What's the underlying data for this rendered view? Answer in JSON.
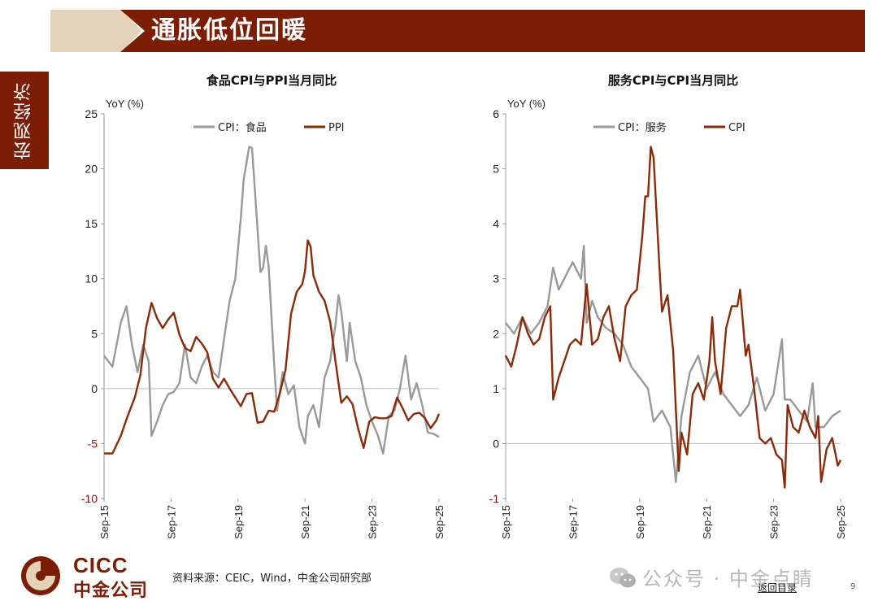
{
  "header": {
    "title": "通胀低位回暖"
  },
  "side_tab": {
    "label": "宏观经济"
  },
  "footer": {
    "logo_en": "CICC",
    "logo_cn": "中金公司",
    "source": "资料来源：CEIC，Wind，中金公司研究部",
    "watermark": "公众号 · 中金点睛",
    "back_link": "返回目录",
    "page_number": "9"
  },
  "colors": {
    "brand": "#7b1e05",
    "gold": "#e3d2b8",
    "gray_series": "#999999",
    "red_series": "#8b2a06"
  },
  "chart_data": [
    {
      "type": "line",
      "title": "食品CPI与PPI当月同比",
      "ylabel": "YoY (%)",
      "ylim": [
        -10,
        25
      ],
      "yticks": [
        -10,
        -5,
        0,
        5,
        10,
        15,
        20,
        25
      ],
      "xlim": [
        "2015-09",
        "2025-09"
      ],
      "xticks": [
        "Sep-15",
        "Sep-17",
        "Sep-19",
        "Sep-21",
        "Sep-23",
        "Sep-25"
      ],
      "legend_position": "top",
      "series": [
        {
          "name": "CPI：食品",
          "color": "#999999",
          "points": [
            [
              "2015-09",
              3.0
            ],
            [
              "2015-12",
              2.0
            ],
            [
              "2016-03",
              6.0
            ],
            [
              "2016-05",
              7.5
            ],
            [
              "2016-07",
              4.0
            ],
            [
              "2016-09",
              1.5
            ],
            [
              "2016-11",
              4.0
            ],
            [
              "2017-01",
              2.5
            ],
            [
              "2017-02",
              -4.3
            ],
            [
              "2017-04",
              -3.0
            ],
            [
              "2017-06",
              -1.5
            ],
            [
              "2017-08",
              -0.5
            ],
            [
              "2017-10",
              -0.3
            ],
            [
              "2017-12",
              0.5
            ],
            [
              "2018-02",
              4.0
            ],
            [
              "2018-04",
              1.0
            ],
            [
              "2018-06",
              0.5
            ],
            [
              "2018-08",
              2.0
            ],
            [
              "2018-10",
              3.0
            ],
            [
              "2018-12",
              1.5
            ],
            [
              "2019-02",
              1.0
            ],
            [
              "2019-04",
              4.5
            ],
            [
              "2019-06",
              8.0
            ],
            [
              "2019-08",
              10.0
            ],
            [
              "2019-10",
              15.5
            ],
            [
              "2019-11",
              19.0
            ],
            [
              "2020-01",
              22.0
            ],
            [
              "2020-02",
              21.9
            ],
            [
              "2020-04",
              14.5
            ],
            [
              "2020-05",
              10.6
            ],
            [
              "2020-06",
              11.0
            ],
            [
              "2020-07",
              13.0
            ],
            [
              "2020-08",
              11.0
            ],
            [
              "2020-10",
              2.0
            ],
            [
              "2020-11",
              -2.0
            ],
            [
              "2021-01",
              1.5
            ],
            [
              "2021-03",
              -0.5
            ],
            [
              "2021-05",
              0.3
            ],
            [
              "2021-07",
              -3.5
            ],
            [
              "2021-09",
              -5.0
            ],
            [
              "2021-10",
              -2.5
            ],
            [
              "2021-12",
              -1.5
            ],
            [
              "2022-02",
              -3.5
            ],
            [
              "2022-04",
              1.0
            ],
            [
              "2022-06",
              2.5
            ],
            [
              "2022-08",
              6.0
            ],
            [
              "2022-09",
              8.5
            ],
            [
              "2022-10",
              7.0
            ],
            [
              "2022-12",
              2.5
            ],
            [
              "2023-01",
              6.0
            ],
            [
              "2023-03",
              2.5
            ],
            [
              "2023-05",
              1.0
            ],
            [
              "2023-07",
              -1.5
            ],
            [
              "2023-09",
              -3.0
            ],
            [
              "2023-11",
              -4.2
            ],
            [
              "2024-01",
              -5.9
            ],
            [
              "2024-03",
              -2.5
            ],
            [
              "2024-05",
              -2.0
            ],
            [
              "2024-07",
              0.0
            ],
            [
              "2024-09",
              3.0
            ],
            [
              "2024-11",
              -1.0
            ],
            [
              "2025-01",
              0.5
            ],
            [
              "2025-03",
              -1.5
            ],
            [
              "2025-05",
              -4.0
            ],
            [
              "2025-07",
              -4.1
            ],
            [
              "2025-09",
              -4.4
            ]
          ]
        },
        {
          "name": "PPI",
          "color": "#8b2a06",
          "points": [
            [
              "2015-09",
              -5.9
            ],
            [
              "2015-12",
              -5.9
            ],
            [
              "2016-03",
              -4.3
            ],
            [
              "2016-05",
              -2.8
            ],
            [
              "2016-08",
              -0.8
            ],
            [
              "2016-10",
              1.2
            ],
            [
              "2016-12",
              5.5
            ],
            [
              "2017-02",
              7.8
            ],
            [
              "2017-04",
              6.4
            ],
            [
              "2017-06",
              5.5
            ],
            [
              "2017-08",
              6.3
            ],
            [
              "2017-10",
              6.9
            ],
            [
              "2017-12",
              4.9
            ],
            [
              "2018-02",
              3.7
            ],
            [
              "2018-04",
              3.4
            ],
            [
              "2018-06",
              4.7
            ],
            [
              "2018-08",
              4.1
            ],
            [
              "2018-10",
              3.3
            ],
            [
              "2018-12",
              0.9
            ],
            [
              "2019-02",
              0.1
            ],
            [
              "2019-04",
              0.9
            ],
            [
              "2019-06",
              0.0
            ],
            [
              "2019-08",
              -0.8
            ],
            [
              "2019-10",
              -1.6
            ],
            [
              "2019-12",
              -0.5
            ],
            [
              "2020-02",
              -0.4
            ],
            [
              "2020-04",
              -3.1
            ],
            [
              "2020-06",
              -3.0
            ],
            [
              "2020-08",
              -2.0
            ],
            [
              "2020-10",
              -2.1
            ],
            [
              "2020-12",
              -0.4
            ],
            [
              "2021-02",
              1.7
            ],
            [
              "2021-04",
              6.8
            ],
            [
              "2021-06",
              8.8
            ],
            [
              "2021-08",
              9.5
            ],
            [
              "2021-09",
              10.7
            ],
            [
              "2021-10",
              13.5
            ],
            [
              "2021-11",
              12.9
            ],
            [
              "2021-12",
              10.3
            ],
            [
              "2022-02",
              8.8
            ],
            [
              "2022-04",
              8.0
            ],
            [
              "2022-06",
              6.1
            ],
            [
              "2022-08",
              2.3
            ],
            [
              "2022-10",
              -1.3
            ],
            [
              "2022-12",
              -0.7
            ],
            [
              "2023-02",
              -1.4
            ],
            [
              "2023-04",
              -3.6
            ],
            [
              "2023-06",
              -5.4
            ],
            [
              "2023-08",
              -3.0
            ],
            [
              "2023-10",
              -2.6
            ],
            [
              "2023-12",
              -2.7
            ],
            [
              "2024-02",
              -2.7
            ],
            [
              "2024-04",
              -2.5
            ],
            [
              "2024-06",
              -0.8
            ],
            [
              "2024-08",
              -1.8
            ],
            [
              "2024-10",
              -2.9
            ],
            [
              "2024-12",
              -2.3
            ],
            [
              "2025-02",
              -2.2
            ],
            [
              "2025-04",
              -2.7
            ],
            [
              "2025-06",
              -3.6
            ],
            [
              "2025-08",
              -2.9
            ],
            [
              "2025-09",
              -2.3
            ]
          ]
        }
      ]
    },
    {
      "type": "line",
      "title": "服务CPI与CPI当月同比",
      "ylabel": "YoY (%)",
      "ylim": [
        -1,
        6
      ],
      "yticks": [
        -1,
        0,
        1,
        2,
        3,
        4,
        5,
        6
      ],
      "xlim": [
        "2015-09",
        "2025-09"
      ],
      "xticks": [
        "Sep-15",
        "Sep-17",
        "Sep-19",
        "Sep-21",
        "Sep-23",
        "Sep-25"
      ],
      "legend_position": "top",
      "series": [
        {
          "name": "CPI：服务",
          "color": "#999999",
          "points": [
            [
              "2015-09",
              2.2
            ],
            [
              "2015-12",
              2.0
            ],
            [
              "2016-03",
              2.3
            ],
            [
              "2016-06",
              2.0
            ],
            [
              "2016-09",
              2.2
            ],
            [
              "2016-12",
              2.5
            ],
            [
              "2017-02",
              3.2
            ],
            [
              "2017-04",
              2.8
            ],
            [
              "2017-06",
              3.0
            ],
            [
              "2017-09",
              3.3
            ],
            [
              "2017-12",
              3.0
            ],
            [
              "2018-01",
              3.6
            ],
            [
              "2018-02",
              2.2
            ],
            [
              "2018-04",
              2.6
            ],
            [
              "2018-06",
              2.3
            ],
            [
              "2018-09",
              2.1
            ],
            [
              "2018-12",
              2.0
            ],
            [
              "2019-03",
              1.8
            ],
            [
              "2019-06",
              1.4
            ],
            [
              "2019-09",
              1.2
            ],
            [
              "2019-12",
              1.0
            ],
            [
              "2020-02",
              0.4
            ],
            [
              "2020-05",
              0.6
            ],
            [
              "2020-08",
              0.3
            ],
            [
              "2020-10",
              -0.7
            ],
            [
              "2020-12",
              0.5
            ],
            [
              "2021-03",
              1.3
            ],
            [
              "2021-06",
              1.6
            ],
            [
              "2021-09",
              1.0
            ],
            [
              "2021-12",
              1.3
            ],
            [
              "2022-03",
              0.9
            ],
            [
              "2022-06",
              0.7
            ],
            [
              "2022-09",
              0.5
            ],
            [
              "2022-12",
              0.7
            ],
            [
              "2023-03",
              1.2
            ],
            [
              "2023-06",
              0.6
            ],
            [
              "2023-09",
              0.9
            ],
            [
              "2023-12",
              1.9
            ],
            [
              "2024-01",
              0.8
            ],
            [
              "2024-03",
              0.8
            ],
            [
              "2024-06",
              0.6
            ],
            [
              "2024-09",
              0.4
            ],
            [
              "2024-11",
              1.1
            ],
            [
              "2024-12",
              0.3
            ],
            [
              "2025-03",
              0.3
            ],
            [
              "2025-06",
              0.5
            ],
            [
              "2025-09",
              0.6
            ]
          ]
        },
        {
          "name": "CPI",
          "color": "#8b2a06",
          "points": [
            [
              "2015-09",
              1.6
            ],
            [
              "2015-11",
              1.4
            ],
            [
              "2016-01",
              1.8
            ],
            [
              "2016-03",
              2.3
            ],
            [
              "2016-05",
              2.0
            ],
            [
              "2016-07",
              1.8
            ],
            [
              "2016-09",
              1.9
            ],
            [
              "2016-11",
              2.3
            ],
            [
              "2017-01",
              2.5
            ],
            [
              "2017-02",
              0.8
            ],
            [
              "2017-04",
              1.2
            ],
            [
              "2017-06",
              1.5
            ],
            [
              "2017-08",
              1.8
            ],
            [
              "2017-10",
              1.9
            ],
            [
              "2017-12",
              1.8
            ],
            [
              "2018-02",
              2.9
            ],
            [
              "2018-04",
              1.8
            ],
            [
              "2018-06",
              1.9
            ],
            [
              "2018-08",
              2.3
            ],
            [
              "2018-10",
              2.5
            ],
            [
              "2018-12",
              1.9
            ],
            [
              "2019-02",
              1.5
            ],
            [
              "2019-04",
              2.5
            ],
            [
              "2019-06",
              2.7
            ],
            [
              "2019-08",
              2.8
            ],
            [
              "2019-10",
              3.8
            ],
            [
              "2019-11",
              4.5
            ],
            [
              "2019-12",
              4.5
            ],
            [
              "2020-01",
              5.4
            ],
            [
              "2020-02",
              5.2
            ],
            [
              "2020-04",
              3.3
            ],
            [
              "2020-05",
              2.4
            ],
            [
              "2020-07",
              2.7
            ],
            [
              "2020-09",
              1.7
            ],
            [
              "2020-11",
              -0.5
            ],
            [
              "2020-12",
              0.2
            ],
            [
              "2021-02",
              -0.2
            ],
            [
              "2021-04",
              0.9
            ],
            [
              "2021-06",
              1.1
            ],
            [
              "2021-08",
              0.8
            ],
            [
              "2021-10",
              1.5
            ],
            [
              "2021-11",
              2.3
            ],
            [
              "2021-12",
              1.5
            ],
            [
              "2022-02",
              0.9
            ],
            [
              "2022-04",
              2.1
            ],
            [
              "2022-06",
              2.5
            ],
            [
              "2022-08",
              2.5
            ],
            [
              "2022-09",
              2.8
            ],
            [
              "2022-11",
              1.6
            ],
            [
              "2022-12",
              1.8
            ],
            [
              "2023-02",
              1.0
            ],
            [
              "2023-04",
              0.1
            ],
            [
              "2023-06",
              0.0
            ],
            [
              "2023-08",
              0.1
            ],
            [
              "2023-10",
              -0.2
            ],
            [
              "2023-12",
              -0.3
            ],
            [
              "2024-01",
              -0.8
            ],
            [
              "2024-02",
              0.7
            ],
            [
              "2024-04",
              0.3
            ],
            [
              "2024-06",
              0.2
            ],
            [
              "2024-08",
              0.6
            ],
            [
              "2024-10",
              0.3
            ],
            [
              "2024-12",
              0.1
            ],
            [
              "2025-01",
              0.5
            ],
            [
              "2025-02",
              -0.7
            ],
            [
              "2025-04",
              -0.1
            ],
            [
              "2025-06",
              0.1
            ],
            [
              "2025-08",
              -0.4
            ],
            [
              "2025-09",
              -0.3
            ]
          ]
        }
      ]
    }
  ]
}
